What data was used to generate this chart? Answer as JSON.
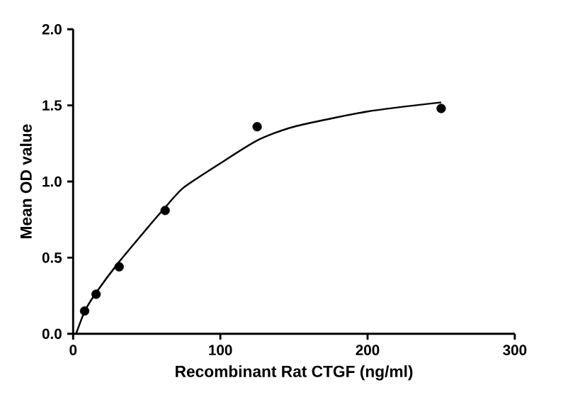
{
  "chart_data": {
    "type": "scatter",
    "xlabel": "Recombinant Rat CTGF (ng/ml)",
    "ylabel": "Mean OD value",
    "xlim": [
      0,
      300
    ],
    "xticks": [
      0,
      100,
      200,
      300
    ],
    "ylim": [
      0,
      2.0
    ],
    "yticks": [
      {
        "value": 0,
        "label": "0.0"
      },
      {
        "value": 0.5,
        "label": "0.5"
      },
      {
        "value": 1.0,
        "label": "1.0"
      },
      {
        "value": 1.5,
        "label": "1.5"
      },
      {
        "value": 2.0,
        "label": "2.0"
      }
    ],
    "series": [
      {
        "color": "#000000",
        "marker": "circle",
        "x": [
          7.8,
          15.6,
          31.25,
          62.5,
          125,
          250
        ],
        "values": [
          0.15,
          0.26,
          0.44,
          0.81,
          1.36,
          1.48
        ]
      },
      {
        "type": "line",
        "color": "#000000",
        "marker": "none",
        "x": [
          2,
          8,
          15.6,
          31,
          50,
          62.5,
          75,
          100,
          125,
          150,
          200,
          250
        ],
        "values": [
          0,
          0.15,
          0.27,
          0.47,
          0.69,
          0.83,
          0.96,
          1.12,
          1.27,
          1.36,
          1.46,
          1.52
        ]
      }
    ]
  }
}
